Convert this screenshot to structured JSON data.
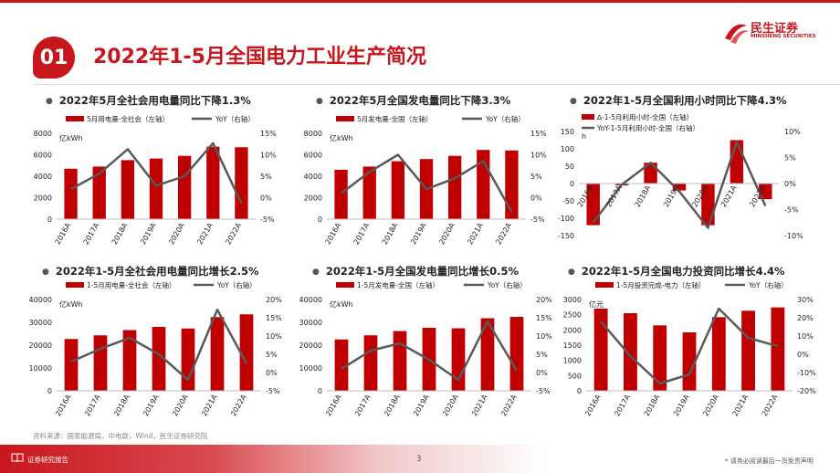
{
  "header": {
    "section_number": "01",
    "title": "2022年1-5月全国电力工业生产简况",
    "logo_name": "民生证券",
    "logo_en": "MINSHENG SECURITIES"
  },
  "colors": {
    "accent": "#c8161d",
    "bar": "#c00000",
    "line": "#595959"
  },
  "chart_data": [
    {
      "type": "bar",
      "title": "2022年5月全社会用电量同比下降1.3%",
      "categories": [
        "2016A",
        "2017A",
        "2018A",
        "2019A",
        "2020A",
        "2021A",
        "2022A"
      ],
      "series": [
        {
          "name": "5月用电量-全社会（左轴）",
          "values": [
            4700,
            4900,
            5500,
            5650,
            5900,
            6750,
            6700
          ]
        },
        {
          "name": "YoY（右轴）",
          "values": [
            0.02,
            0.056,
            0.113,
            0.028,
            0.05,
            0.127,
            -0.013
          ]
        }
      ],
      "left_unit": "亿kWh",
      "ylim_left": [
        0,
        8000
      ],
      "yticks_left": [
        "0",
        "2000",
        "4000",
        "6000",
        "8000"
      ],
      "ylim_right": [
        -0.05,
        0.15
      ],
      "yticks_right": [
        "-5%",
        "0%",
        "5%",
        "10%",
        "15%"
      ]
    },
    {
      "type": "bar",
      "title": "2022年5月全国发电量同比下降3.3%",
      "categories": [
        "2016A",
        "2017A",
        "2018A",
        "2019A",
        "2020A",
        "2021A",
        "2022A"
      ],
      "series": [
        {
          "name": "5月发电量-全国（左轴）",
          "values": [
            4600,
            4900,
            5400,
            5600,
            5900,
            6450,
            6400
          ]
        },
        {
          "name": "YoY（右轴）",
          "values": [
            0.01,
            0.06,
            0.1,
            0.02,
            0.045,
            0.085,
            -0.033
          ]
        }
      ],
      "left_unit": "亿kWh",
      "ylim_left": [
        0,
        8000
      ],
      "yticks_left": [
        "0",
        "2000",
        "4000",
        "6000",
        "8000"
      ],
      "ylim_right": [
        -0.05,
        0.15
      ],
      "yticks_right": [
        "-5%",
        "0%",
        "5%",
        "10%",
        "15%"
      ]
    },
    {
      "type": "bar",
      "title": "2022年1-5月全国利用小时同比下降4.3%",
      "categories": [
        "2016A",
        "2017A",
        "2018A",
        "2019A",
        "2020A",
        "2021A",
        "2022A"
      ],
      "series": [
        {
          "name": "∆-1-5月利用小时-全国（左轴）",
          "values": [
            -120,
            -5,
            60,
            -20,
            -120,
            125,
            -45
          ]
        },
        {
          "name": "YoY-1-5月利用小时-全国（右轴）",
          "values": [
            -0.075,
            -0.002,
            0.04,
            -0.015,
            -0.085,
            0.08,
            -0.043
          ]
        }
      ],
      "left_unit": "h",
      "ylim_left": [
        -150,
        150
      ],
      "yticks_left": [
        "-150",
        "-100",
        "-50",
        "0",
        "50",
        "100",
        "150"
      ],
      "ylim_right": [
        -0.1,
        0.1
      ],
      "yticks_right": [
        "-10%",
        "-5%",
        "0%",
        "5%",
        "10%"
      ]
    },
    {
      "type": "bar",
      "title": "2022年1-5月全社会用电量同比增长2.5%",
      "categories": [
        "2016A",
        "2017A",
        "2018A",
        "2019A",
        "2020A",
        "2021A",
        "2022A"
      ],
      "series": [
        {
          "name": "1-5月用电量-全社会（左轴）",
          "values": [
            22700,
            24300,
            26600,
            28000,
            27300,
            32300,
            33500
          ]
        },
        {
          "name": "YoY（右轴）",
          "values": [
            0.03,
            0.065,
            0.095,
            0.05,
            -0.02,
            0.172,
            0.025
          ]
        }
      ],
      "left_unit": "亿kWh",
      "ylim_left": [
        0,
        40000
      ],
      "yticks_left": [
        "0",
        "10000",
        "20000",
        "30000",
        "40000"
      ],
      "ylim_right": [
        -0.05,
        0.2
      ],
      "yticks_right": [
        "-5%",
        "0%",
        "5%",
        "10%",
        "15%",
        "20%"
      ]
    },
    {
      "type": "bar",
      "title": "2022年1-5月全国发电量同比增长0.5%",
      "categories": [
        "2016A",
        "2017A",
        "2018A",
        "2019A",
        "2020A",
        "2021A",
        "2022A"
      ],
      "series": [
        {
          "name": "1-5月发电量-全国（左轴）",
          "values": [
            22500,
            24300,
            26200,
            27600,
            27400,
            31800,
            32400
          ]
        },
        {
          "name": "YoY（右轴）",
          "values": [
            0.01,
            0.06,
            0.08,
            0.035,
            -0.02,
            0.14,
            0.005
          ]
        }
      ],
      "left_unit": "亿kWh",
      "ylim_left": [
        0,
        40000
      ],
      "yticks_left": [
        "0",
        "10000",
        "20000",
        "30000",
        "40000"
      ],
      "ylim_right": [
        -0.05,
        0.2
      ],
      "yticks_right": [
        "-5%",
        "0%",
        "5%",
        "10%",
        "15%",
        "20%"
      ]
    },
    {
      "type": "bar",
      "title": "2022年1-5月全国电力投资同比增长4.4%",
      "categories": [
        "2016A",
        "2017A",
        "2018A",
        "2019A",
        "2020A",
        "2021A",
        "2022A"
      ],
      "series": [
        {
          "name": "1-5月投资完成-电力（左轴）",
          "values": [
            2700,
            2550,
            2150,
            1920,
            2420,
            2630,
            2740
          ]
        },
        {
          "name": "YoY（右轴）",
          "values": [
            0.18,
            -0.01,
            -0.16,
            -0.11,
            0.25,
            0.09,
            0.044
          ]
        }
      ],
      "left_unit": "亿元",
      "ylim_left": [
        0,
        3000
      ],
      "yticks_left": [
        "0",
        "500",
        "1000",
        "1500",
        "2000",
        "2500",
        "3000"
      ],
      "ylim_right": [
        -0.2,
        0.3
      ],
      "yticks_right": [
        "-20%",
        "-10%",
        "0%",
        "10%",
        "20%",
        "30%"
      ]
    }
  ],
  "source": "资料来源：国家能源局，中电联，Wind，民生证券研究院",
  "footer": {
    "label": "证券研究报告",
    "page": "3",
    "disclaimer": "* 请务必阅读最后一页免责声明"
  }
}
